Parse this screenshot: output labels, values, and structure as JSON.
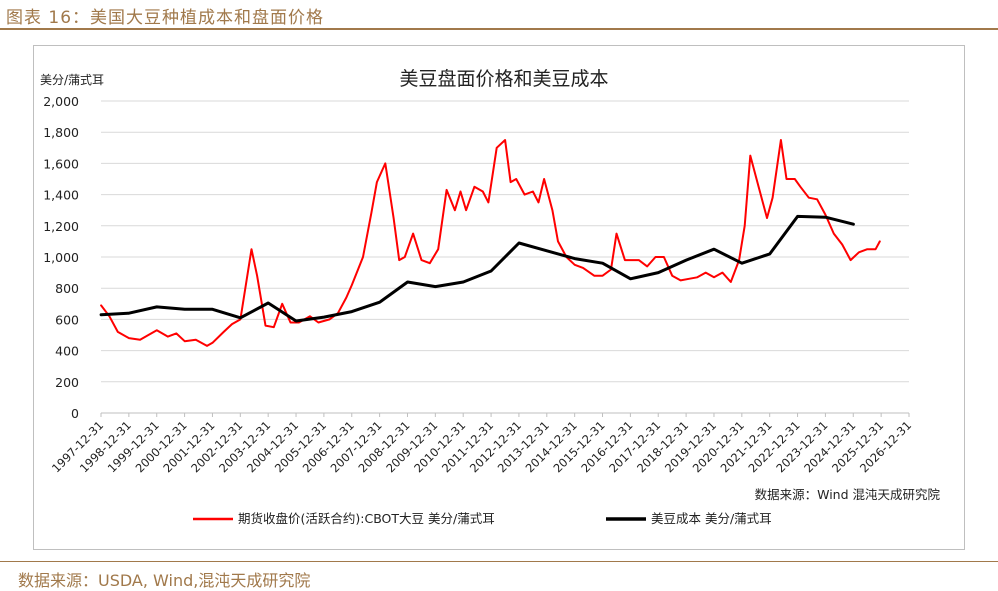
{
  "figure_title": "图表 16：美国大豆种植成本和盘面价格",
  "footer_source": "数据来源：USDA, Wind,混沌天成研究院",
  "chart_data": {
    "type": "line",
    "title": "美豆盘面价格和美豆成本",
    "ylabel": "美分/蒲式耳",
    "ylim": [
      0,
      2000
    ],
    "yticks": [
      "0",
      "200",
      "400",
      "600",
      "800",
      "1,000",
      "1,200",
      "1,400",
      "1,600",
      "1,800",
      "2,000"
    ],
    "xticks": [
      "1997-12-31",
      "1998-12-31",
      "1999-12-31",
      "2000-12-31",
      "2001-12-31",
      "2002-12-31",
      "2003-12-31",
      "2004-12-31",
      "2005-12-31",
      "2006-12-31",
      "2007-12-31",
      "2008-12-31",
      "2009-12-31",
      "2010-12-31",
      "2011-12-31",
      "2012-12-31",
      "2013-12-31",
      "2014-12-31",
      "2015-12-31",
      "2016-12-31",
      "2017-12-31",
      "2018-12-31",
      "2019-12-31",
      "2020-12-31",
      "2021-12-31",
      "2022-12-31",
      "2023-12-31",
      "2024-12-31",
      "2025-12-31",
      "2026-12-31"
    ],
    "source_note": "数据来源：Wind 混沌天成研究院",
    "grid": true,
    "legend": "bottom",
    "series": [
      {
        "name": "期货收盘价(活跃合约):CBOT大豆 美分/蒲式耳",
        "color": "#ff0000",
        "x": [
          1998.0,
          1998.3,
          1998.6,
          1999.0,
          1999.4,
          1999.7,
          2000.0,
          2000.4,
          2000.7,
          2001.0,
          2001.4,
          2001.8,
          2002.0,
          2002.4,
          2002.7,
          2003.0,
          2003.4,
          2003.6,
          2003.9,
          2004.2,
          2004.5,
          2004.8,
          2005.1,
          2005.5,
          2005.8,
          2006.2,
          2006.5,
          2006.8,
          2007.0,
          2007.4,
          2007.7,
          2007.9,
          2008.2,
          2008.5,
          2008.7,
          2008.9,
          2009.2,
          2009.5,
          2009.8,
          2010.1,
          2010.4,
          2010.7,
          2010.9,
          2011.1,
          2011.4,
          2011.7,
          2011.9,
          2012.2,
          2012.5,
          2012.7,
          2012.9,
          2013.2,
          2013.5,
          2013.7,
          2013.9,
          2014.2,
          2014.4,
          2014.7,
          2015.0,
          2015.3,
          2015.7,
          2016.0,
          2016.3,
          2016.5,
          2016.8,
          2017.0,
          2017.3,
          2017.6,
          2017.9,
          2018.2,
          2018.5,
          2018.8,
          2019.1,
          2019.4,
          2019.7,
          2020.0,
          2020.3,
          2020.6,
          2020.9,
          2021.1,
          2021.3,
          2021.6,
          2021.9,
          2022.1,
          2022.4,
          2022.6,
          2022.9,
          2023.1,
          2023.4,
          2023.7,
          2024.0,
          2024.3,
          2024.6,
          2024.9,
          2025.2,
          2025.5,
          2025.8,
          2025.95
        ],
        "values": [
          690,
          620,
          520,
          480,
          470,
          500,
          530,
          490,
          510,
          460,
          470,
          430,
          450,
          520,
          570,
          600,
          1050,
          880,
          560,
          550,
          700,
          580,
          580,
          620,
          580,
          600,
          640,
          740,
          820,
          1000,
          1280,
          1480,
          1600,
          1250,
          980,
          1000,
          1150,
          980,
          960,
          1050,
          1430,
          1300,
          1420,
          1300,
          1450,
          1420,
          1350,
          1700,
          1750,
          1480,
          1500,
          1400,
          1420,
          1350,
          1500,
          1300,
          1100,
          1000,
          950,
          930,
          880,
          880,
          920,
          1150,
          980,
          980,
          980,
          940,
          1000,
          1000,
          880,
          850,
          860,
          870,
          900,
          870,
          900,
          840,
          980,
          1200,
          1650,
          1450,
          1250,
          1380,
          1750,
          1500,
          1500,
          1450,
          1380,
          1370,
          1270,
          1150,
          1080,
          980,
          1030,
          1050,
          1050,
          1100
        ]
      },
      {
        "name": "美豆成本 美分/蒲式耳",
        "color": "#000000",
        "x": [
          1998.0,
          1999.0,
          2000.0,
          2001.0,
          2002.0,
          2003.0,
          2004.0,
          2005.0,
          2006.0,
          2007.0,
          2008.0,
          2009.0,
          2010.0,
          2011.0,
          2012.0,
          2013.0,
          2014.0,
          2015.0,
          2016.0,
          2017.0,
          2018.0,
          2019.0,
          2020.0,
          2021.0,
          2022.0,
          2023.0,
          2024.0,
          2025.0
        ],
        "values": [
          630,
          640,
          680,
          665,
          665,
          610,
          705,
          590,
          615,
          650,
          710,
          840,
          810,
          840,
          910,
          1090,
          1040,
          990,
          960,
          860,
          900,
          980,
          1050,
          960,
          1020,
          1260,
          1255,
          1210
        ]
      }
    ]
  }
}
